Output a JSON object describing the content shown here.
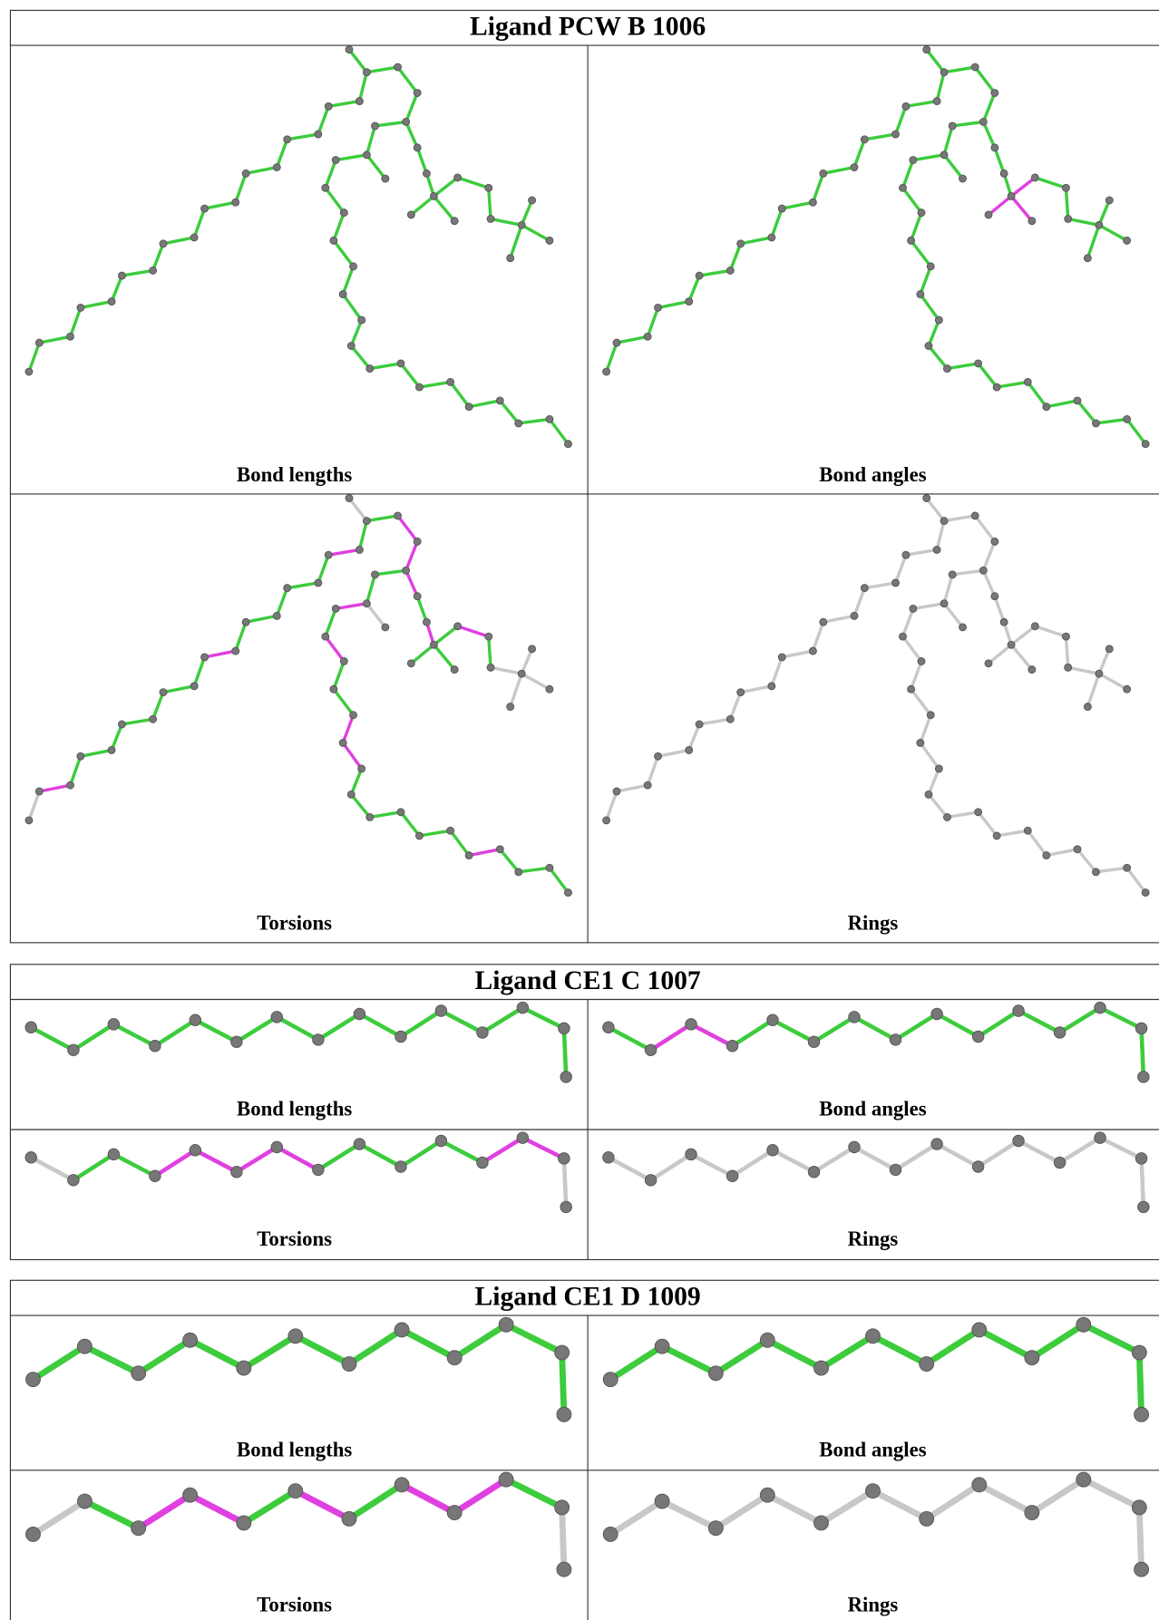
{
  "ligands": [
    {
      "title": "Ligand PCW B 1006",
      "panels": [
        "Bond lengths",
        "Bond angles",
        "Torsions",
        "Rings"
      ]
    },
    {
      "title": "Ligand CE1 C 1007",
      "panels": [
        "Bond lengths",
        "Bond angles",
        "Torsions",
        "Rings"
      ]
    },
    {
      "title": "Ligand CE1 D 1009",
      "panels": [
        "Bond lengths",
        "Bond angles",
        "Torsions",
        "Rings"
      ]
    }
  ]
}
